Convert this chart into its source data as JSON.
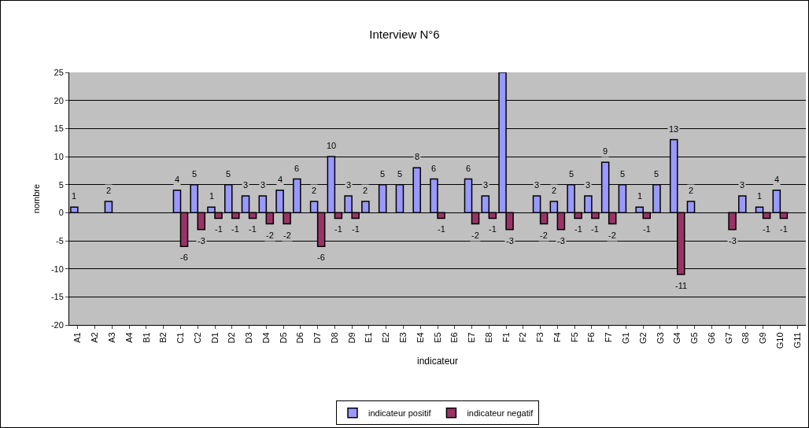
{
  "chart_data": {
    "type": "bar",
    "title": "Interview N°6",
    "xlabel": "indicateur",
    "ylabel": "nombre",
    "categories": [
      "A1",
      "A2",
      "A3",
      "A4",
      "B1",
      "B2",
      "C1",
      "C2",
      "D1",
      "D2",
      "D3",
      "D4",
      "D5",
      "D6",
      "D7",
      "D8",
      "D9",
      "E1",
      "E2",
      "E3",
      "E4",
      "E5",
      "E6",
      "E7",
      "E8",
      "F1",
      "F2",
      "F3",
      "F4",
      "F5",
      "F6",
      "F7",
      "G1",
      "G2",
      "G3",
      "G4",
      "G5",
      "G6",
      "G7",
      "G8",
      "G9",
      "G10",
      "G11"
    ],
    "series": [
      {
        "name": "indicateur positif",
        "color": "#9999ff",
        "values": [
          1,
          null,
          2,
          null,
          null,
          null,
          4,
          5,
          1,
          5,
          3,
          3,
          4,
          6,
          2,
          10,
          3,
          2,
          5,
          5,
          8,
          6,
          null,
          6,
          3,
          25,
          null,
          3,
          2,
          5,
          3,
          9,
          5,
          1,
          5,
          13,
          2,
          null,
          null,
          3,
          1,
          4,
          null
        ],
        "value_labels": [
          "1",
          null,
          "2",
          null,
          null,
          null,
          "4",
          "5",
          "1",
          "5",
          "3",
          "3",
          "4",
          "6",
          "2",
          "10",
          "3",
          "2",
          "5",
          "5",
          "8",
          "6",
          null,
          "6",
          "3",
          null,
          null,
          "3",
          "2",
          "5",
          "3",
          "9",
          "5",
          "1",
          "5",
          "13",
          "2",
          null,
          null,
          "3",
          "1",
          "4",
          null
        ]
      },
      {
        "name": "indicateur negatif",
        "color": "#993366",
        "values": [
          null,
          null,
          null,
          null,
          null,
          null,
          -6,
          -3,
          -1,
          -1,
          -1,
          -2,
          -2,
          null,
          -6,
          -1,
          -1,
          null,
          null,
          null,
          null,
          -1,
          null,
          -2,
          -1,
          -3,
          null,
          -2,
          -3,
          -1,
          -1,
          -2,
          null,
          -1,
          null,
          -11,
          null,
          null,
          -3,
          null,
          -1,
          -1,
          null
        ],
        "value_labels": [
          null,
          null,
          null,
          null,
          null,
          null,
          "-6",
          "-3",
          "-1",
          "-1",
          "-1",
          "-2",
          "-2",
          null,
          "-6",
          "-1",
          "-1",
          null,
          null,
          null,
          null,
          "-1",
          null,
          "-2",
          "-1",
          "-3",
          null,
          "-2",
          "-3",
          "-1",
          "-1",
          "-2",
          null,
          "-1",
          null,
          "-11",
          null,
          null,
          "-3",
          null,
          "-1",
          "-1",
          null
        ]
      }
    ],
    "ylim": [
      -20,
      25
    ],
    "yticks": [
      -20,
      -15,
      -10,
      -5,
      0,
      5,
      10,
      15,
      20,
      25
    ],
    "grid": "y",
    "legend": "bottom"
  }
}
